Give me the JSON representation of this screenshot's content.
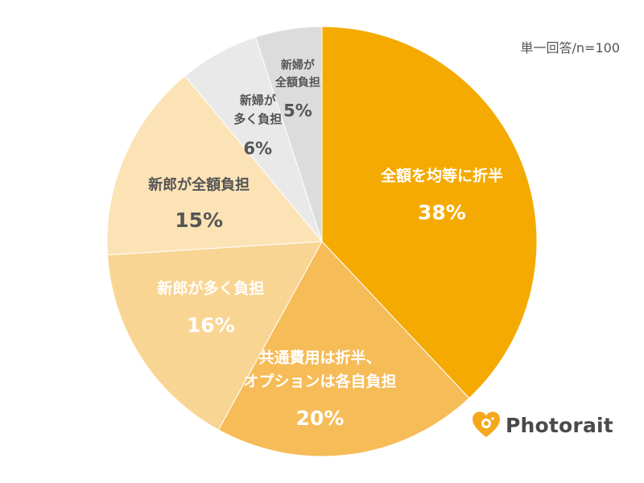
{
  "note": "単一回答/n=100",
  "brand": {
    "name": "Photorait"
  },
  "colors": {
    "brand_icon": "#f4a81c",
    "label_dark": "#555555",
    "label_light": "#ffffff"
  },
  "chart_data": {
    "type": "pie",
    "title": "",
    "start": "top",
    "direction": "clockwise",
    "slices": [
      {
        "label": [
          "全額を均等に折半"
        ],
        "value": 38,
        "value_label": "38%",
        "color": "#f4aa00",
        "text_color": "#ffffff"
      },
      {
        "label": [
          "共通費用は折半、",
          "オプションは各自負担"
        ],
        "value": 20,
        "value_label": "20%",
        "color": "#f6bc58",
        "text_color": "#ffffff"
      },
      {
        "label": [
          "新郎が多く負担"
        ],
        "value": 16,
        "value_label": "16%",
        "color": "#f9d593",
        "text_color": "#ffffff"
      },
      {
        "label": [
          "新郎が全額負担"
        ],
        "value": 15,
        "value_label": "15%",
        "color": "#fce3b6",
        "text_color": "#555555"
      },
      {
        "label": [
          "新婦が",
          "多く負担"
        ],
        "value": 6,
        "value_label": "6%",
        "color": "#e9e9e9",
        "text_color": "#555555"
      },
      {
        "label": [
          "新婦が",
          "全額負担"
        ],
        "value": 5,
        "value_label": "5%",
        "color": "#dcdcdc",
        "text_color": "#555555"
      }
    ]
  }
}
